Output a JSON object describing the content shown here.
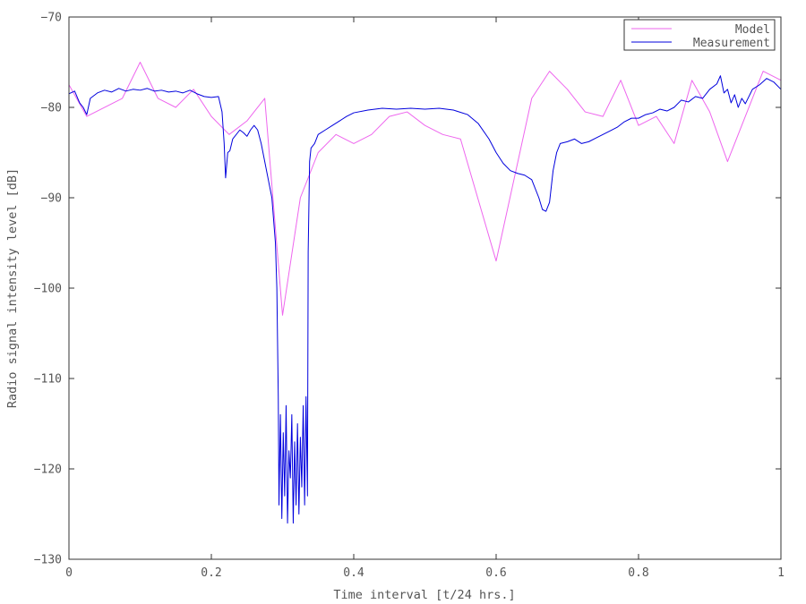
{
  "chart_data": {
    "type": "line",
    "title": "",
    "xlabel": "Time interval [t/24 hrs.]",
    "ylabel": "Radio signal intensity level [dB]",
    "xlim": [
      0,
      1
    ],
    "ylim": [
      -130,
      -70
    ],
    "grid": false,
    "legend_position": "top-right",
    "x_ticks": [
      {
        "value": 0,
        "label": "0"
      },
      {
        "value": 0.2,
        "label": "0.2"
      },
      {
        "value": 0.4,
        "label": "0.4"
      },
      {
        "value": 0.6,
        "label": "0.6"
      },
      {
        "value": 0.8,
        "label": "0.8"
      },
      {
        "value": 1,
        "label": "1"
      }
    ],
    "y_ticks": [
      {
        "value": -70,
        "label": "−70"
      },
      {
        "value": -80,
        "label": "−80"
      },
      {
        "value": -90,
        "label": "−90"
      },
      {
        "value": -100,
        "label": "−100"
      },
      {
        "value": -110,
        "label": "−110"
      },
      {
        "value": -120,
        "label": "−120"
      },
      {
        "value": -130,
        "label": "−130"
      }
    ],
    "series": [
      {
        "name": "Model",
        "color": "#ee66ee",
        "points": [
          [
            0,
            -77.5
          ],
          [
            0.025,
            -81
          ],
          [
            0.075,
            -79
          ],
          [
            0.1,
            -75
          ],
          [
            0.125,
            -79
          ],
          [
            0.15,
            -80
          ],
          [
            0.175,
            -78
          ],
          [
            0.2,
            -81
          ],
          [
            0.225,
            -83
          ],
          [
            0.25,
            -81.5
          ],
          [
            0.275,
            -79
          ],
          [
            0.3,
            -103
          ],
          [
            0.325,
            -90
          ],
          [
            0.35,
            -85
          ],
          [
            0.375,
            -83
          ],
          [
            0.4,
            -84
          ],
          [
            0.425,
            -83
          ],
          [
            0.45,
            -81
          ],
          [
            0.475,
            -80.5
          ],
          [
            0.5,
            -82
          ],
          [
            0.525,
            -83
          ],
          [
            0.55,
            -83.5
          ],
          [
            0.6,
            -97
          ],
          [
            0.65,
            -79
          ],
          [
            0.675,
            -76
          ],
          [
            0.7,
            -78
          ],
          [
            0.725,
            -80.5
          ],
          [
            0.75,
            -81
          ],
          [
            0.775,
            -77
          ],
          [
            0.8,
            -82
          ],
          [
            0.825,
            -81
          ],
          [
            0.85,
            -84
          ],
          [
            0.875,
            -77
          ],
          [
            0.9,
            -80.5
          ],
          [
            0.925,
            -86
          ],
          [
            0.95,
            -81
          ],
          [
            0.975,
            -76
          ],
          [
            1,
            -77
          ]
        ]
      },
      {
        "name": "Measurement",
        "color": "#0000dd",
        "points": [
          [
            0,
            -78.5
          ],
          [
            0.008,
            -78.2
          ],
          [
            0.015,
            -79.5
          ],
          [
            0.02,
            -80
          ],
          [
            0.025,
            -80.8
          ],
          [
            0.03,
            -79
          ],
          [
            0.04,
            -78.4
          ],
          [
            0.05,
            -78.1
          ],
          [
            0.06,
            -78.3
          ],
          [
            0.07,
            -77.9
          ],
          [
            0.08,
            -78.2
          ],
          [
            0.09,
            -78
          ],
          [
            0.1,
            -78.1
          ],
          [
            0.11,
            -77.9
          ],
          [
            0.12,
            -78.2
          ],
          [
            0.13,
            -78.1
          ],
          [
            0.14,
            -78.3
          ],
          [
            0.15,
            -78.2
          ],
          [
            0.16,
            -78.4
          ],
          [
            0.17,
            -78.1
          ],
          [
            0.18,
            -78.5
          ],
          [
            0.19,
            -78.8
          ],
          [
            0.2,
            -78.9
          ],
          [
            0.21,
            -78.8
          ],
          [
            0.215,
            -80.5
          ],
          [
            0.218,
            -84
          ],
          [
            0.22,
            -87.8
          ],
          [
            0.223,
            -85
          ],
          [
            0.226,
            -84.8
          ],
          [
            0.23,
            -83.5
          ],
          [
            0.24,
            -82.5
          ],
          [
            0.245,
            -82.8
          ],
          [
            0.25,
            -83.2
          ],
          [
            0.255,
            -82.5
          ],
          [
            0.26,
            -82
          ],
          [
            0.265,
            -82.5
          ],
          [
            0.27,
            -84
          ],
          [
            0.275,
            -86
          ],
          [
            0.28,
            -88
          ],
          [
            0.285,
            -90
          ],
          [
            0.29,
            -95
          ],
          [
            0.292,
            -100
          ],
          [
            0.294,
            -112
          ],
          [
            0.295,
            -124
          ],
          [
            0.297,
            -114
          ],
          [
            0.299,
            -125.5
          ],
          [
            0.301,
            -116
          ],
          [
            0.303,
            -123
          ],
          [
            0.305,
            -113
          ],
          [
            0.307,
            -126
          ],
          [
            0.309,
            -118
          ],
          [
            0.311,
            -121
          ],
          [
            0.313,
            -114
          ],
          [
            0.315,
            -126
          ],
          [
            0.317,
            -117
          ],
          [
            0.319,
            -124
          ],
          [
            0.321,
            -115
          ],
          [
            0.323,
            -125
          ],
          [
            0.325,
            -116.5
          ],
          [
            0.327,
            -122
          ],
          [
            0.329,
            -113
          ],
          [
            0.331,
            -124
          ],
          [
            0.333,
            -112
          ],
          [
            0.335,
            -123
          ],
          [
            0.336,
            -96
          ],
          [
            0.338,
            -86
          ],
          [
            0.34,
            -84.5
          ],
          [
            0.345,
            -84
          ],
          [
            0.35,
            -83
          ],
          [
            0.36,
            -82.5
          ],
          [
            0.37,
            -82
          ],
          [
            0.38,
            -81.5
          ],
          [
            0.39,
            -81
          ],
          [
            0.4,
            -80.6
          ],
          [
            0.42,
            -80.3
          ],
          [
            0.44,
            -80.1
          ],
          [
            0.46,
            -80.2
          ],
          [
            0.48,
            -80.1
          ],
          [
            0.5,
            -80.2
          ],
          [
            0.52,
            -80.1
          ],
          [
            0.54,
            -80.3
          ],
          [
            0.56,
            -80.8
          ],
          [
            0.575,
            -81.8
          ],
          [
            0.59,
            -83.5
          ],
          [
            0.6,
            -85
          ],
          [
            0.61,
            -86.2
          ],
          [
            0.62,
            -87
          ],
          [
            0.63,
            -87.3
          ],
          [
            0.64,
            -87.5
          ],
          [
            0.65,
            -88
          ],
          [
            0.66,
            -90
          ],
          [
            0.665,
            -91.3
          ],
          [
            0.67,
            -91.5
          ],
          [
            0.675,
            -90.5
          ],
          [
            0.68,
            -87
          ],
          [
            0.685,
            -85
          ],
          [
            0.69,
            -84
          ],
          [
            0.7,
            -83.8
          ],
          [
            0.71,
            -83.5
          ],
          [
            0.72,
            -84
          ],
          [
            0.73,
            -83.8
          ],
          [
            0.74,
            -83.4
          ],
          [
            0.75,
            -83
          ],
          [
            0.76,
            -82.6
          ],
          [
            0.77,
            -82.2
          ],
          [
            0.78,
            -81.6
          ],
          [
            0.79,
            -81.2
          ],
          [
            0.8,
            -81.2
          ],
          [
            0.81,
            -80.8
          ],
          [
            0.82,
            -80.6
          ],
          [
            0.83,
            -80.2
          ],
          [
            0.84,
            -80.4
          ],
          [
            0.85,
            -80
          ],
          [
            0.86,
            -79.2
          ],
          [
            0.87,
            -79.4
          ],
          [
            0.88,
            -78.8
          ],
          [
            0.89,
            -79
          ],
          [
            0.9,
            -78
          ],
          [
            0.91,
            -77.4
          ],
          [
            0.915,
            -76.5
          ],
          [
            0.92,
            -78.4
          ],
          [
            0.925,
            -78
          ],
          [
            0.93,
            -79.5
          ],
          [
            0.935,
            -78.6
          ],
          [
            0.94,
            -80
          ],
          [
            0.945,
            -79
          ],
          [
            0.95,
            -79.6
          ],
          [
            0.96,
            -78
          ],
          [
            0.97,
            -77.5
          ],
          [
            0.98,
            -76.8
          ],
          [
            0.99,
            -77.2
          ],
          [
            1,
            -78
          ]
        ]
      }
    ]
  }
}
